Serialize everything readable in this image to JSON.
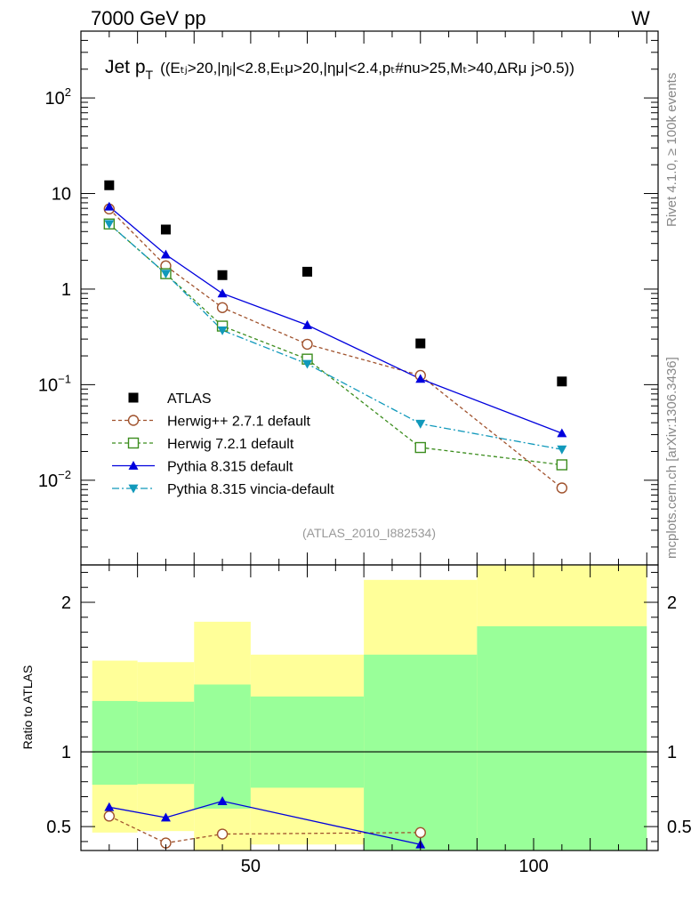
{
  "header": {
    "energy": "7000 GeV pp",
    "process": "W",
    "title_main": "Jet p",
    "title_sub": "T",
    "title_cuts": "((Eₜⱼ>20,|ηⱼ|<2.8,Eₜμ>20,|ημ|<2.4,pₜ#nu>25,Mₜ>40,ΔRμ j>0.5))",
    "watermark": "(ATLAS_2010_I882534)"
  },
  "side_labels": {
    "rivet": "Rivet 4.1.0, ≥ 100k events",
    "mcplots": "mcplots.cern.ch [arXiv:1306.3436]"
  },
  "ratio_axis_label": "Ratio to ATLAS",
  "chart_data": [
    {
      "type": "scatter",
      "panel": "main",
      "yscale": "log",
      "xlim": [
        20,
        122
      ],
      "ylim": [
        0.0013,
        500
      ],
      "ytick_labels": [
        {
          "value": 100,
          "base": "10",
          "exp": "2"
        },
        {
          "value": 10,
          "base": "10",
          "exp": ""
        },
        {
          "value": 1,
          "base": "1",
          "exp": ""
        },
        {
          "value": 0.1,
          "base": "10",
          "exp": "−1"
        },
        {
          "value": 0.01,
          "base": "10",
          "exp": "−2"
        }
      ],
      "legend_position": "lower-left",
      "series": [
        {
          "name": "ATLAS",
          "marker": "square-filled",
          "color": "#000000",
          "line": "none",
          "points": [
            {
              "x": 25,
              "y": 12.2
            },
            {
              "x": 35,
              "y": 4.2
            },
            {
              "x": 45,
              "y": 1.4
            },
            {
              "x": 60,
              "y": 1.52
            },
            {
              "x": 80,
              "y": 0.27
            },
            {
              "x": 105,
              "y": 0.108
            }
          ]
        },
        {
          "name": "Herwig++ 2.7.1 default",
          "marker": "circle-open",
          "color": "#a0522d",
          "line": "dashed",
          "points": [
            {
              "x": 25,
              "y": 6.9
            },
            {
              "x": 35,
              "y": 1.75
            },
            {
              "x": 45,
              "y": 0.64
            },
            {
              "x": 60,
              "y": 0.265
            },
            {
              "x": 80,
              "y": 0.125
            },
            {
              "x": 105,
              "y": 0.0083
            }
          ]
        },
        {
          "name": "Herwig 7.2.1 default",
          "marker": "square-open",
          "color": "#3c8d1e",
          "line": "dashed",
          "points": [
            {
              "x": 25,
              "y": 4.8
            },
            {
              "x": 35,
              "y": 1.45
            },
            {
              "x": 45,
              "y": 0.41
            },
            {
              "x": 60,
              "y": 0.185
            },
            {
              "x": 80,
              "y": 0.022
            },
            {
              "x": 105,
              "y": 0.0145
            }
          ]
        },
        {
          "name": "Pythia 8.315 default",
          "marker": "triangle-up-filled",
          "color": "#0000dd",
          "line": "solid",
          "points": [
            {
              "x": 25,
              "y": 7.3
            },
            {
              "x": 35,
              "y": 2.3
            },
            {
              "x": 45,
              "y": 0.9
            },
            {
              "x": 60,
              "y": 0.42
            },
            {
              "x": 80,
              "y": 0.115
            },
            {
              "x": 105,
              "y": 0.031
            }
          ]
        },
        {
          "name": "Pythia 8.315 vincia-default",
          "marker": "triangle-down-filled",
          "color": "#1199bb",
          "line": "dashdot",
          "points": [
            {
              "x": 25,
              "y": 4.8
            },
            {
              "x": 35,
              "y": 1.45
            },
            {
              "x": 45,
              "y": 0.37
            },
            {
              "x": 60,
              "y": 0.165
            },
            {
              "x": 80,
              "y": 0.039
            },
            {
              "x": 105,
              "y": 0.021
            }
          ]
        }
      ]
    },
    {
      "type": "scatter",
      "panel": "ratio",
      "xlabel": "",
      "ylabel": "Ratio to ATLAS",
      "xlim": [
        20,
        122
      ],
      "ylim": [
        0.34,
        2.25
      ],
      "xticks": [
        50,
        100
      ],
      "yticks": [
        0.5,
        1,
        2
      ],
      "uncertainty_bands": [
        {
          "xlo": 22,
          "xhi": 30,
          "stat_lo": 0.78,
          "stat_hi": 1.34,
          "total_lo": 0.46,
          "total_hi": 1.61
        },
        {
          "xlo": 30,
          "xhi": 40,
          "stat_lo": 0.785,
          "stat_hi": 1.335,
          "total_lo": 0.47,
          "total_hi": 1.6
        },
        {
          "xlo": 40,
          "xhi": 50,
          "stat_lo": 0.62,
          "stat_hi": 1.45,
          "total_lo": 0.34,
          "total_hi": 1.87
        },
        {
          "xlo": 50,
          "xhi": 70,
          "stat_lo": 0.76,
          "stat_hi": 1.37,
          "total_lo": 0.38,
          "total_hi": 1.65
        },
        {
          "xlo": 70,
          "xhi": 90,
          "stat_lo": 0.34,
          "stat_hi": 1.65,
          "total_lo": 0.34,
          "total_hi": 2.15
        },
        {
          "xlo": 90,
          "xhi": 120,
          "stat_lo": 0.34,
          "stat_hi": 1.84,
          "total_lo": 0.34,
          "total_hi": 2.25
        }
      ],
      "series": [
        {
          "name": "Herwig++ 2.7.1 default",
          "color": "#a0522d",
          "line": "dashed",
          "points": [
            {
              "x": 25,
              "y": 0.57
            },
            {
              "x": 35,
              "y": 0.39
            },
            {
              "x": 45,
              "y": 0.45
            },
            {
              "x": 80,
              "y": 0.46
            }
          ]
        },
        {
          "name": "Pythia 8.315 default",
          "color": "#0000dd",
          "line": "solid",
          "points": [
            {
              "x": 25,
              "y": 0.63
            },
            {
              "x": 35,
              "y": 0.56
            },
            {
              "x": 45,
              "y": 0.67
            },
            {
              "x": 80,
              "y": 0.38
            }
          ]
        }
      ]
    }
  ]
}
